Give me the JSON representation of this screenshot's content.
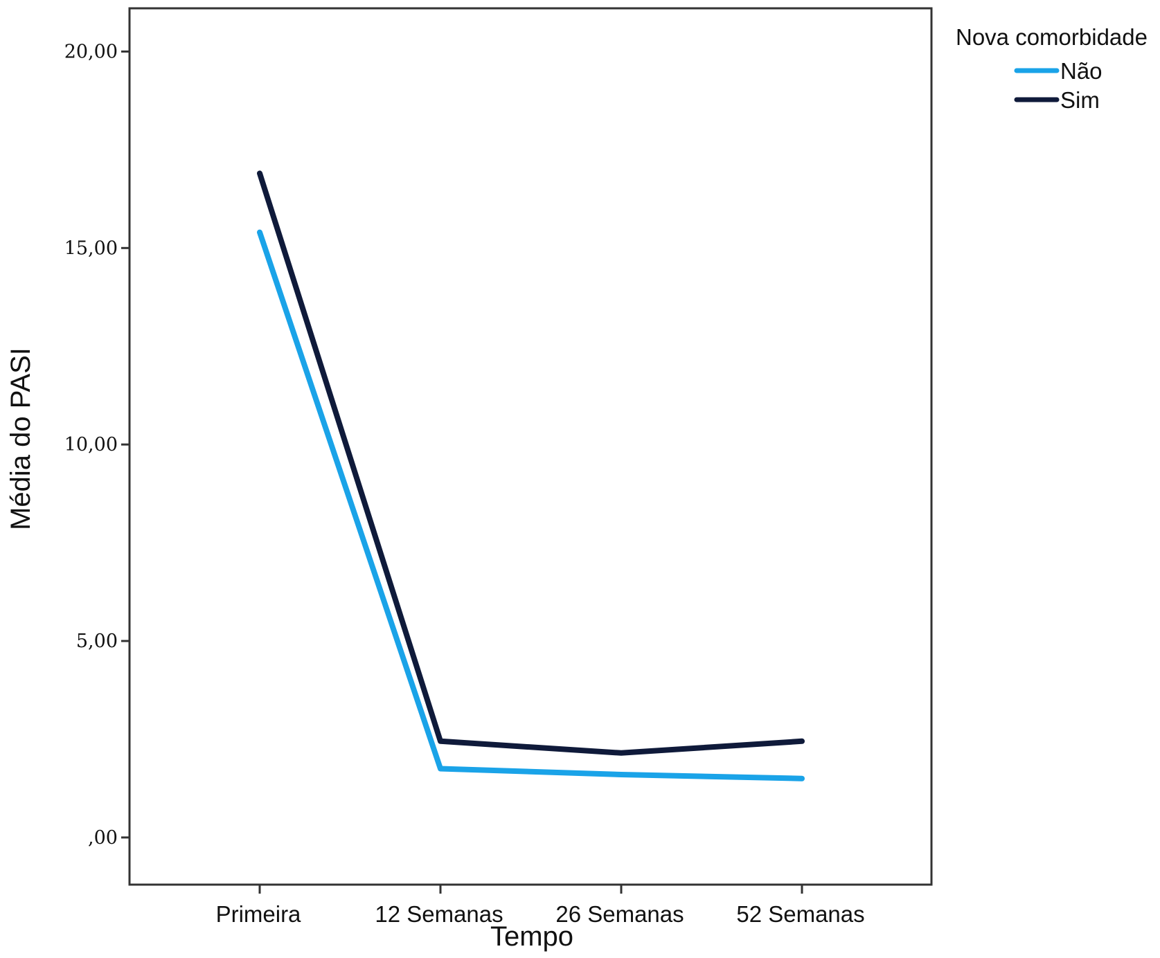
{
  "chart_data": {
    "type": "line",
    "title": "",
    "xlabel": "Tempo",
    "ylabel": "Média do PASI",
    "categories": [
      "Primeira",
      "12 Semanas",
      "26 Semanas",
      "52 Semanas"
    ],
    "y_ticks": [
      0,
      5,
      10,
      15,
      20
    ],
    "y_tick_labels": [
      ",00",
      "5,00",
      "10,00",
      "15,00",
      "20,00"
    ],
    "ylim": [
      -1.2,
      21.1
    ],
    "grid": false,
    "legend": {
      "title": "Nova comorbidade",
      "position": "top-right, outside plot"
    },
    "series": [
      {
        "name": "Não",
        "color": "#1aa3e8",
        "values": [
          15.4,
          1.75,
          1.6,
          1.5
        ]
      },
      {
        "name": "Sim",
        "color": "#0f1a3a",
        "values": [
          16.9,
          2.45,
          2.15,
          2.45
        ]
      }
    ]
  }
}
